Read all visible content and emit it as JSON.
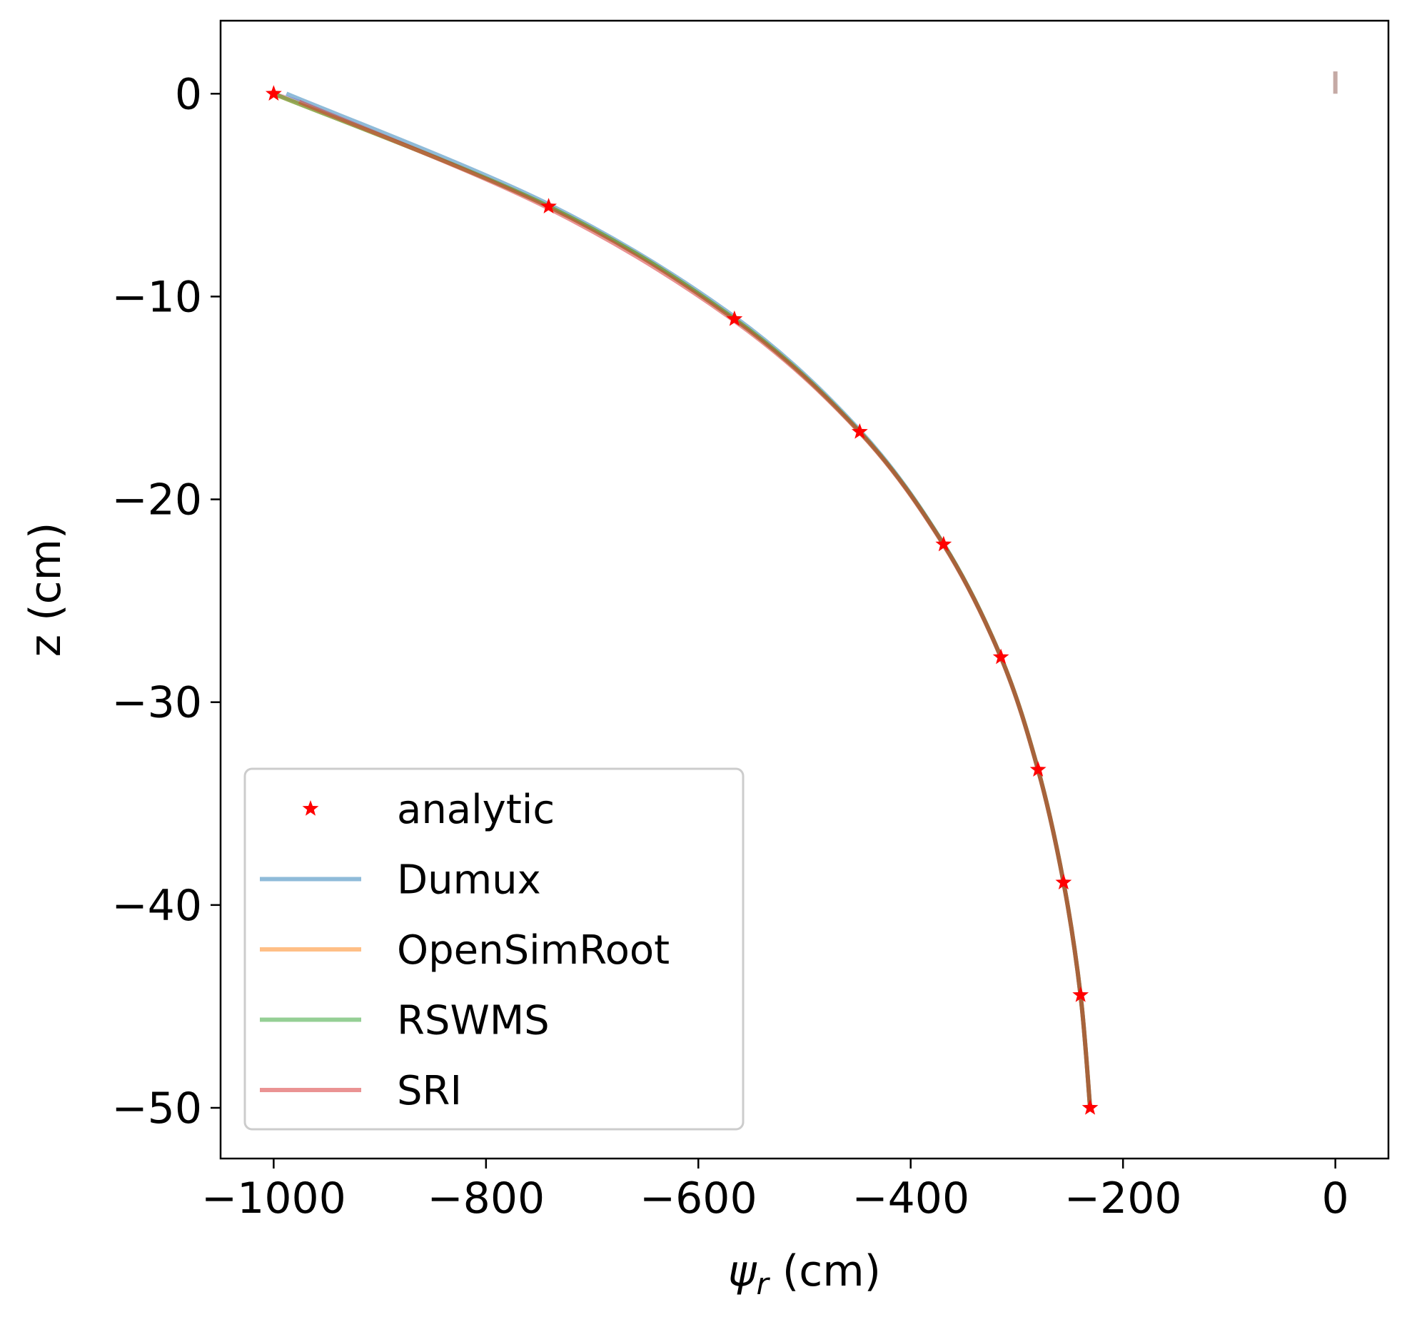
{
  "chart_data": {
    "type": "line",
    "xlabel_symbol": "ψ",
    "xlabel_sub": "r",
    "xlabel_unit": " (cm)",
    "ylabel": "z (cm)",
    "xlim": [
      -1050,
      50
    ],
    "ylim": [
      -52.5,
      3.6
    ],
    "xticks": [
      -1000,
      -800,
      -600,
      -400,
      -200,
      0
    ],
    "xtick_labels": [
      "−1000",
      "−800",
      "−600",
      "−400",
      "−200",
      "0"
    ],
    "yticks": [
      0,
      -10,
      -20,
      -30,
      -40,
      -50
    ],
    "ytick_labels": [
      "0",
      "−10",
      "−20",
      "−30",
      "−40",
      "−50"
    ],
    "grid": false,
    "legend_position": "lower-left",
    "analytic": {
      "name": "analytic",
      "color": "#ff0000",
      "marker": "star",
      "x": [
        -1000,
        -741,
        -566,
        -448,
        -369,
        -315,
        -280,
        -256,
        -240,
        -231
      ],
      "y": [
        0,
        -5.56,
        -11.11,
        -16.67,
        -22.22,
        -27.78,
        -33.33,
        -38.89,
        -44.44,
        -50
      ]
    },
    "series": [
      {
        "name": "Dumux",
        "color": "#1f77b4",
        "x": [
          -988,
          -741,
          -566,
          -448,
          -369,
          -315,
          -280,
          -256,
          -240,
          -231
        ],
        "y": [
          0,
          -5.45,
          -11.0,
          -16.6,
          -22.2,
          -27.78,
          -33.33,
          -38.89,
          -44.44,
          -50
        ]
      },
      {
        "name": "OpenSimRoot",
        "color": "#ff7f0e",
        "x": [
          -1000,
          -741,
          -566,
          -448,
          -369,
          -315,
          -280,
          -256,
          -240,
          -231
        ],
        "y": [
          0,
          -5.56,
          -11.11,
          -16.67,
          -22.22,
          -27.78,
          -33.33,
          -38.89,
          -44.44,
          -50
        ]
      },
      {
        "name": "RSWMS",
        "color": "#2ca02c",
        "x": [
          -1000,
          -741,
          -566,
          -448,
          -369,
          -315,
          -280,
          -256,
          -240,
          -231
        ],
        "y": [
          0,
          -5.56,
          -11.11,
          -16.67,
          -22.22,
          -27.78,
          -33.33,
          -38.89,
          -44.44,
          -50
        ]
      },
      {
        "name": "SRI",
        "color": "#d62728",
        "x": [
          -976,
          -741,
          -566,
          -448,
          -369,
          -315,
          -280,
          -256,
          -240,
          -231
        ],
        "y": [
          -0.4,
          -5.65,
          -11.2,
          -16.7,
          -22.25,
          -27.8,
          -33.35,
          -38.9,
          -44.45,
          -50
        ]
      }
    ],
    "extra_series": [
      {
        "name": "pink-start",
        "color": "#e377c2",
        "x": [
          -1000,
          -976
        ],
        "y": [
          0,
          -0.4
        ]
      },
      {
        "name": "brown-bar",
        "color": "#8c564b",
        "x": [
          0,
          0
        ],
        "y": [
          0,
          1.1
        ]
      }
    ]
  }
}
